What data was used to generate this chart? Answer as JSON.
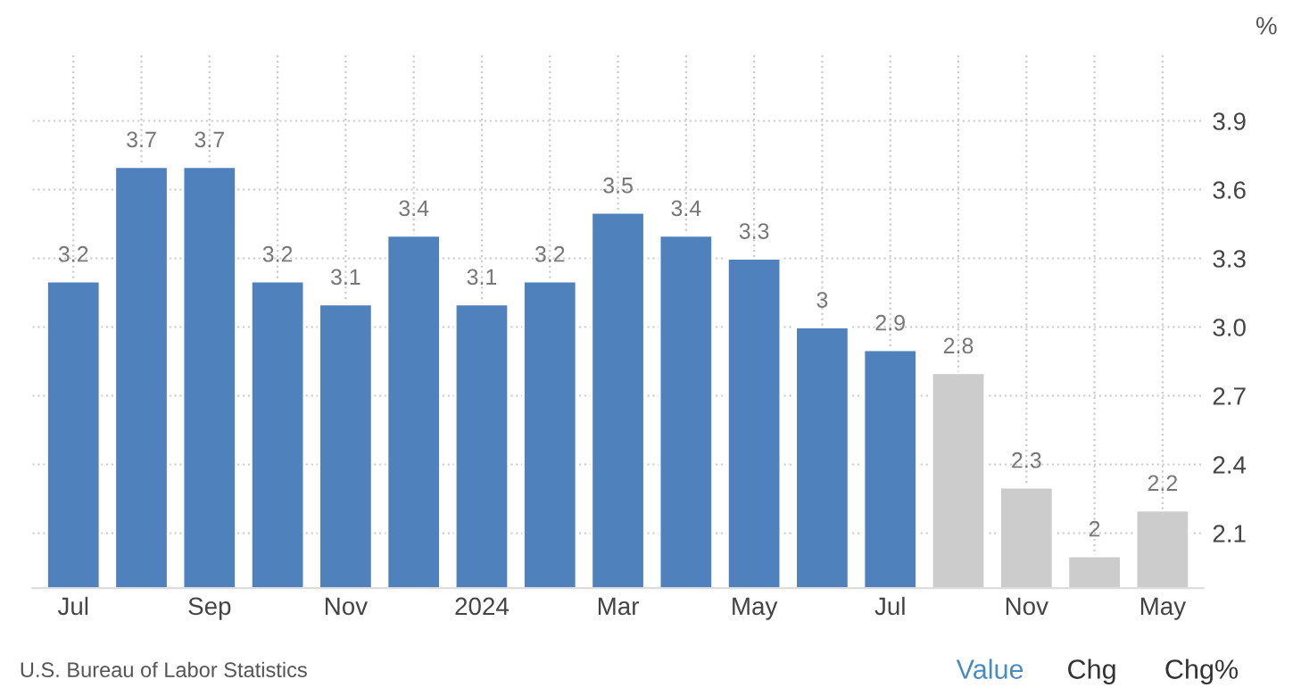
{
  "chart_data": {
    "type": "bar",
    "categories": [
      "Jul",
      null,
      "Sep",
      null,
      "Nov",
      null,
      "2024",
      null,
      "Mar",
      null,
      "May",
      null,
      "Jul",
      null,
      "Nov",
      null,
      "May"
    ],
    "values": [
      3.2,
      3.7,
      3.7,
      3.2,
      3.1,
      3.4,
      3.1,
      3.2,
      3.5,
      3.4,
      3.3,
      3,
      2.9,
      2.8,
      2.3,
      2,
      2.2
    ],
    "colors": [
      "#4f81bd",
      "#4f81bd",
      "#4f81bd",
      "#4f81bd",
      "#4f81bd",
      "#4f81bd",
      "#4f81bd",
      "#4f81bd",
      "#4f81bd",
      "#4f81bd",
      "#4f81bd",
      "#4f81bd",
      "#4f81bd",
      "#cccccc",
      "#cccccc",
      "#cccccc",
      "#cccccc"
    ],
    "data_labels": true,
    "ylabel": "%",
    "ylim": [
      1.86,
      4.2
    ],
    "yticks": [
      "2.1",
      "2.4",
      "2.7",
      "3.0",
      "3.3",
      "3.6",
      "3.9"
    ],
    "grid": true,
    "annotations": [
      "U.S. Bureau of Labor Statistics",
      "Value",
      "Chg",
      "Chg%"
    ]
  }
}
